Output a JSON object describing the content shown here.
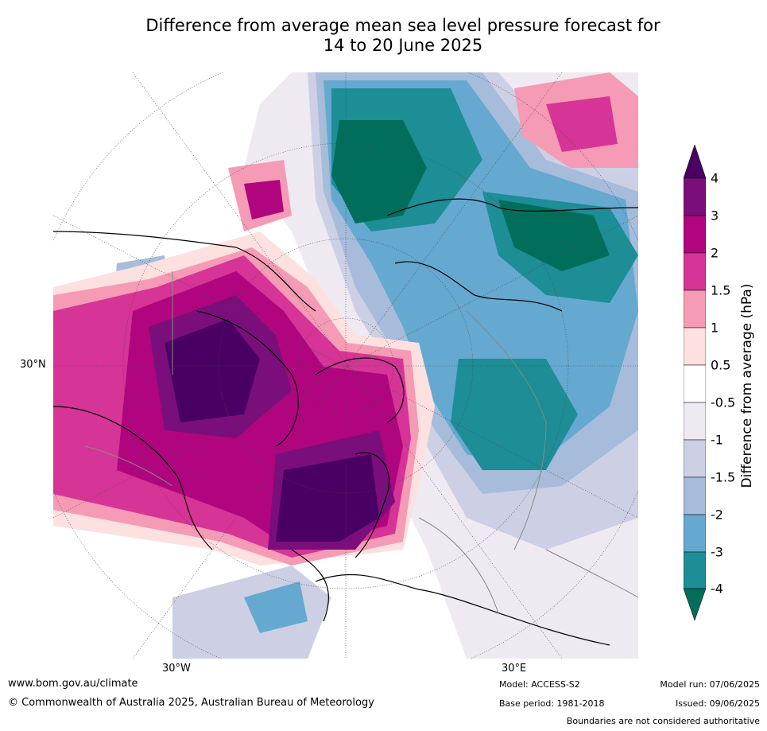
{
  "title": {
    "line1": "Difference from average mean sea level pressure forecast for",
    "line2": "14 to 20 June 2025"
  },
  "map": {
    "lat_label_left": "30°N",
    "lon_label_bottom_left": "30°W",
    "lon_label_bottom_right": "30°E"
  },
  "colorbar": {
    "title": "Difference from average (hPa)",
    "ticks": [
      "4",
      "3",
      "2",
      "1.5",
      "1",
      "0.5",
      "-0.5",
      "-1",
      "-1.5",
      "-2",
      "-3",
      "-4"
    ],
    "colors": {
      "above_4": "#4a0062",
      "3_4": "#7a0f7c",
      "2_3": "#b0057e",
      "1.5_2": "#d63496",
      "1_1.5": "#f59bb5",
      "0.5_1": "#fde0e0",
      "-0.5_0.5": "#ffffff",
      "-1_-0.5": "#efeaf2",
      "-1.5_-1": "#cdd0e4",
      "-2_-1.5": "#a6bcda",
      "-3_-2": "#66a9d0",
      "-4_-3": "#1d8d96",
      "below_-4": "#006e5a"
    }
  },
  "footer": {
    "url": "www.bom.gov.au/climate",
    "copyright": "© Commonwealth of Australia 2025, Australian Bureau of Meteorology",
    "model": "Model: ACCESS-S2",
    "base_period": "Base period: 1981-2018",
    "model_run": "Model run: 07/06/2025",
    "issued": "Issued: 09/06/2025",
    "disclaimer": "Boundaries are not considered authoritative"
  }
}
